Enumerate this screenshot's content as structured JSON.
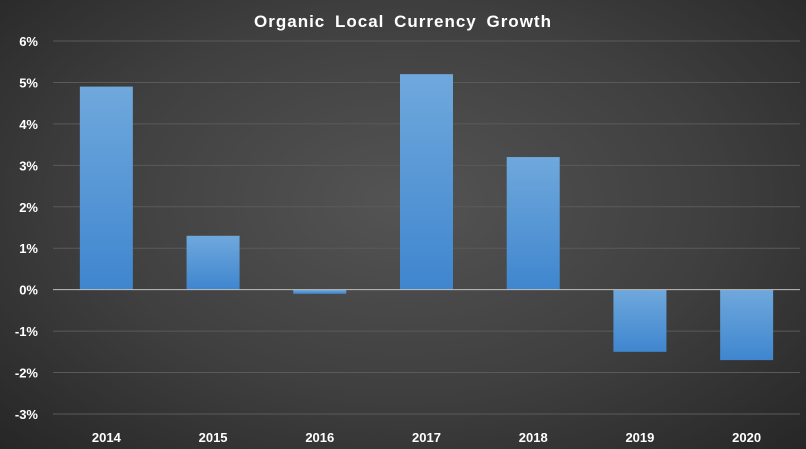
{
  "chart_data": {
    "type": "bar",
    "title": "Organic Local Currency Growth",
    "xlabel": "",
    "ylabel": "",
    "categories": [
      "2014",
      "2015",
      "2016",
      "2017",
      "2018",
      "2019",
      "2020"
    ],
    "values": [
      4.9,
      1.3,
      -0.1,
      5.2,
      3.2,
      -1.5,
      -1.7
    ],
    "value_unit": "%",
    "ylim": [
      -3,
      6
    ],
    "yticks": [
      6,
      5,
      4,
      3,
      2,
      1,
      0,
      -1,
      -2,
      -3
    ],
    "ytick_labels": [
      "6%",
      "5%",
      "4%",
      "3%",
      "2%",
      "1%",
      "0%",
      "-1%",
      "-2%",
      "-3%"
    ],
    "grid": true,
    "legend": "none",
    "colors": {
      "bar": "#5b9bd5",
      "bar_light": "#6fa8dc",
      "bar_dark": "#3f86cf",
      "grid": "#5a5a5a",
      "zero_line": "#bfbfbf",
      "text": "#ffffff"
    }
  }
}
